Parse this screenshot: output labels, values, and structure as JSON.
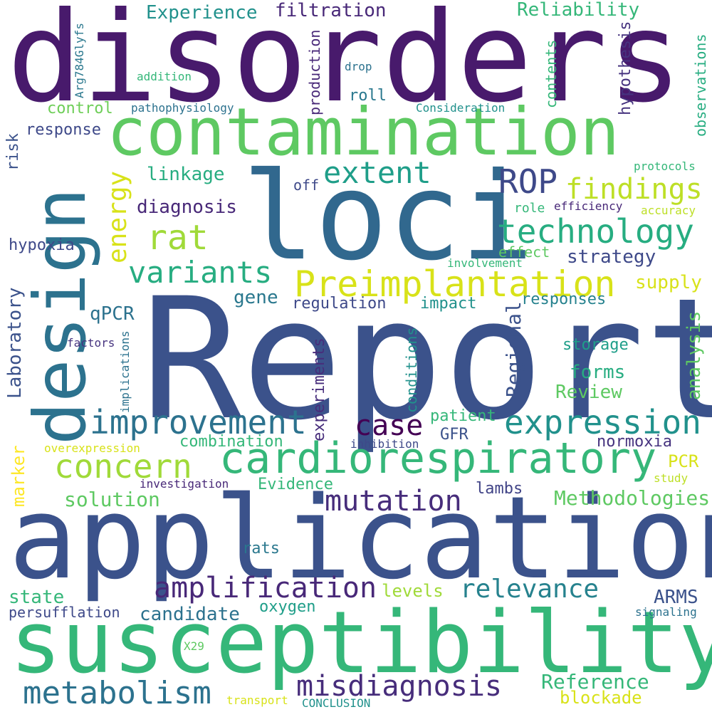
{
  "words": [
    {
      "text": "Report",
      "color": "#3b528b"
    },
    {
      "text": "disorders",
      "color": "#481a6c"
    },
    {
      "text": "application",
      "color": "#3b528b"
    },
    {
      "text": "susceptibility",
      "color": "#35b779"
    },
    {
      "text": "loci",
      "color": "#31688e"
    },
    {
      "text": "contamination",
      "color": "#5ec962"
    },
    {
      "text": "design",
      "color": "#2c728e"
    },
    {
      "text": "cardiorespiratory",
      "color": "#35b779"
    },
    {
      "text": "improvement",
      "color": "#2c728e"
    },
    {
      "text": "Preimplantation",
      "color": "#d8e219"
    },
    {
      "text": "technology",
      "color": "#27ad81"
    },
    {
      "text": "expression",
      "color": "#21918c"
    },
    {
      "text": "concern",
      "color": "#a0da39"
    },
    {
      "text": "metabolism",
      "color": "#2c728e"
    },
    {
      "text": "misdiagnosis",
      "color": "#472d7b"
    },
    {
      "text": "amplification",
      "color": "#482878"
    },
    {
      "text": "variants",
      "color": "#27ad81"
    },
    {
      "text": "extent",
      "color": "#1f9e89"
    },
    {
      "text": "rat",
      "color": "#a0da39"
    },
    {
      "text": "ROP",
      "color": "#3e4989"
    },
    {
      "text": "findings",
      "color": "#bddf26"
    },
    {
      "text": "mutation",
      "color": "#472d7b"
    },
    {
      "text": "case",
      "color": "#440154"
    },
    {
      "text": "relevance",
      "color": "#26828e"
    },
    {
      "text": "energy",
      "color": "#d8e219"
    },
    {
      "text": "Reference",
      "color": "#35b779"
    },
    {
      "text": "Methodologies",
      "color": "#5ec962"
    },
    {
      "text": "blockade",
      "color": "#d8e219"
    },
    {
      "text": "filtration",
      "color": "#482878"
    },
    {
      "text": "Experience",
      "color": "#21918c"
    },
    {
      "text": "Reliability",
      "color": "#35b779"
    },
    {
      "text": "diagnosis",
      "color": "#482878"
    },
    {
      "text": "linkage",
      "color": "#27ad81"
    },
    {
      "text": "strategy",
      "color": "#3e4989"
    },
    {
      "text": "supply",
      "color": "#d8e219"
    },
    {
      "text": "gene",
      "color": "#2a788e"
    },
    {
      "text": "regulation",
      "color": "#3e4989"
    },
    {
      "text": "impact",
      "color": "#21918c"
    },
    {
      "text": "responses",
      "color": "#26828e"
    },
    {
      "text": "Regional",
      "color": "#3b528b"
    },
    {
      "text": "analysis",
      "color": "#5ec962"
    },
    {
      "text": "storage",
      "color": "#1f9e89"
    },
    {
      "text": "forms",
      "color": "#27ad81"
    },
    {
      "text": "Review",
      "color": "#5ec962"
    },
    {
      "text": "patient",
      "color": "#35b779"
    },
    {
      "text": "GFR",
      "color": "#3b528b"
    },
    {
      "text": "normoxia",
      "color": "#46337f"
    },
    {
      "text": "PCR",
      "color": "#d8e219"
    },
    {
      "text": "study",
      "color": "#bddf26"
    },
    {
      "text": "lambs",
      "color": "#414487"
    },
    {
      "text": "solution",
      "color": "#5ec962"
    },
    {
      "text": "Evidence",
      "color": "#35b779"
    },
    {
      "text": "investigation",
      "color": "#482878"
    },
    {
      "text": "combination",
      "color": "#35b779"
    },
    {
      "text": "overexpression",
      "color": "#d8e219"
    },
    {
      "text": "inhibition",
      "color": "#3e4989"
    },
    {
      "text": "marker",
      "color": "#fde725"
    },
    {
      "text": "rats",
      "color": "#2a788e"
    },
    {
      "text": "levels",
      "color": "#a0da39"
    },
    {
      "text": "ARMS",
      "color": "#3b528b"
    },
    {
      "text": "state",
      "color": "#35b779"
    },
    {
      "text": "persufflation",
      "color": "#3e4989"
    },
    {
      "text": "candidate",
      "color": "#2c728e"
    },
    {
      "text": "oxygen",
      "color": "#1f9e89"
    },
    {
      "text": "signaling",
      "color": "#2c728e"
    },
    {
      "text": "X29",
      "color": "#5ec962"
    },
    {
      "text": "transport",
      "color": "#d8e219"
    },
    {
      "text": "CONCLUSION",
      "color": "#21918c"
    },
    {
      "text": "Laboratory",
      "color": "#3b528b"
    },
    {
      "text": "qPCR",
      "color": "#2c728e"
    },
    {
      "text": "factors",
      "color": "#46337f"
    },
    {
      "text": "implications",
      "color": "#2c728e"
    },
    {
      "text": "experiments",
      "color": "#472d7b"
    },
    {
      "text": "conditions",
      "color": "#21918c"
    },
    {
      "text": "hypoxia",
      "color": "#3e4989"
    },
    {
      "text": "risk",
      "color": "#3b528b"
    },
    {
      "text": "response",
      "color": "#3e4989"
    },
    {
      "text": "control",
      "color": "#6ece58"
    },
    {
      "text": "pathophysiology",
      "color": "#2c728e"
    },
    {
      "text": "addition",
      "color": "#35b779"
    },
    {
      "text": "Arg784Glyfs",
      "color": "#2a788e"
    },
    {
      "text": "production",
      "color": "#482878"
    },
    {
      "text": "drop",
      "color": "#2c728e"
    },
    {
      "text": "roll",
      "color": "#2a788e"
    },
    {
      "text": "Consideration",
      "color": "#21918c"
    },
    {
      "text": "contents",
      "color": "#35b779"
    },
    {
      "text": "hypothesis",
      "color": "#46337f"
    },
    {
      "text": "observations",
      "color": "#27ad81"
    },
    {
      "text": "protocols",
      "color": "#35b779"
    },
    {
      "text": "off",
      "color": "#3e4989"
    },
    {
      "text": "role",
      "color": "#35b779"
    },
    {
      "text": "efficiency",
      "color": "#482878"
    },
    {
      "text": "accuracy",
      "color": "#bddf26"
    },
    {
      "text": "effect",
      "color": "#5ec962"
    },
    {
      "text": "involvement",
      "color": "#35b779"
    }
  ]
}
